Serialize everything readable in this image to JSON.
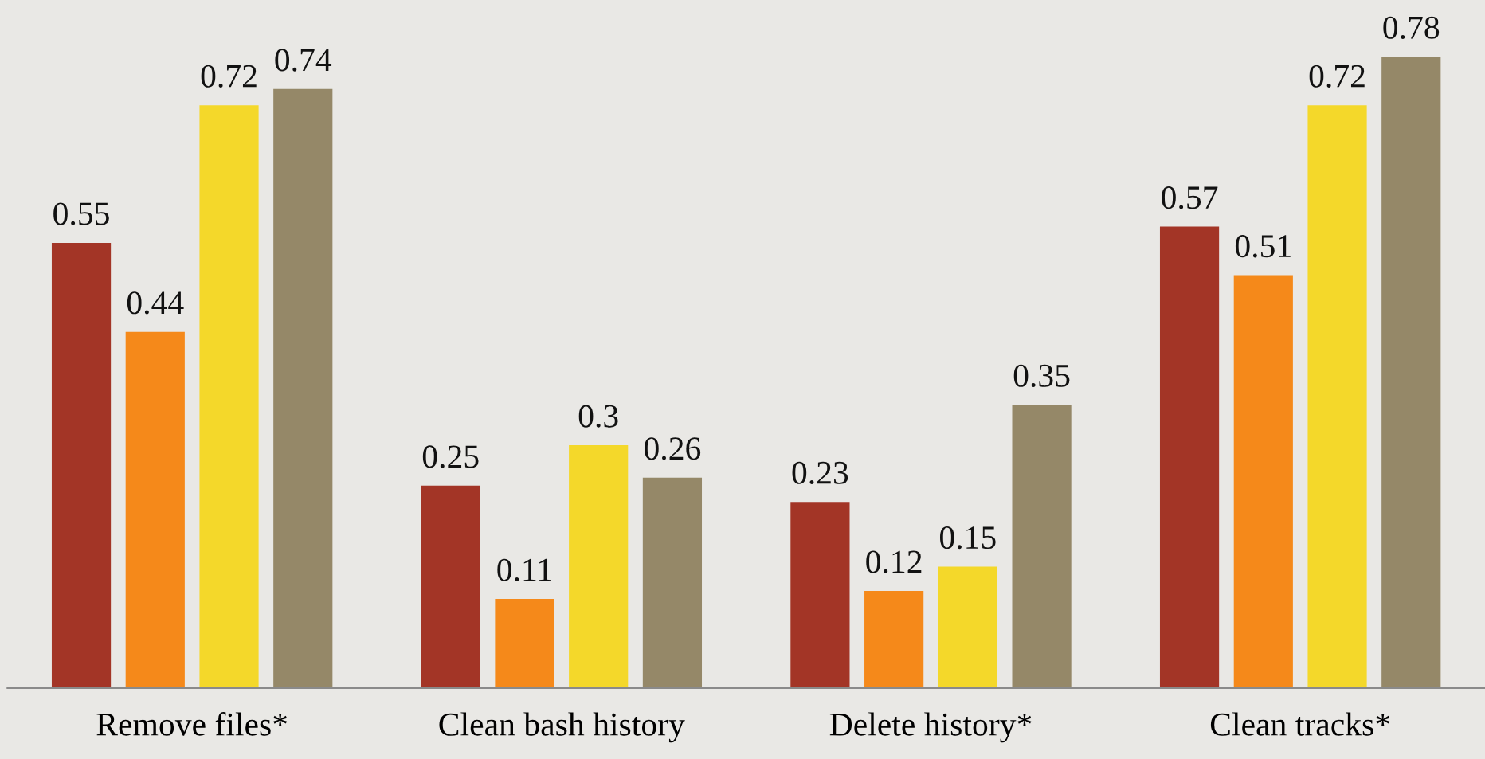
{
  "chart_data": {
    "type": "bar",
    "categories": [
      "Remove files*",
      "Clean bash history",
      "Delete history*",
      "Clean tracks*"
    ],
    "series": [
      {
        "color": "#a33526",
        "values": [
          0.55,
          0.25,
          0.23,
          0.57
        ]
      },
      {
        "color": "#f5891a",
        "values": [
          0.44,
          0.11,
          0.12,
          0.51
        ]
      },
      {
        "color": "#f4d82a",
        "values": [
          0.72,
          0.3,
          0.15,
          0.72
        ]
      },
      {
        "color": "#958868",
        "values": [
          0.74,
          0.26,
          0.35,
          0.78
        ]
      }
    ],
    "ylim": [
      0,
      0.85
    ],
    "data_labels": true,
    "grid": false,
    "legend": false,
    "tick_labels": "x"
  }
}
